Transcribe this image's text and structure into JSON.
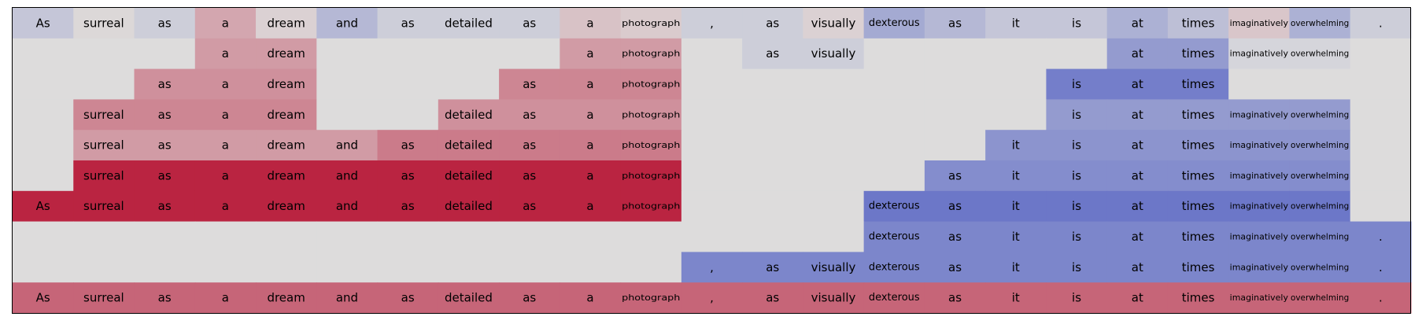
{
  "chart_data": {
    "type": "heatmap",
    "title": "",
    "xlabel": "",
    "ylabel": "",
    "grid": false,
    "legend": "none",
    "tokens": [
      "As",
      "surreal",
      "as",
      "a",
      "dream",
      "and",
      "as",
      "detailed",
      "as",
      "a",
      "photograph",
      ",",
      "as",
      "visually",
      "dexterous",
      "as",
      "it",
      "is",
      "at",
      "times",
      "imaginatively",
      "overwhelming",
      "."
    ],
    "colorscale": {
      "min": -1,
      "max": 1,
      "negative": "#3b4cc0",
      "neutral": "#dddcdc",
      "positive": "#b40426"
    },
    "rows": [
      {
        "values": [
          -0.15,
          0.02,
          -0.1,
          0.25,
          0.05,
          -0.25,
          -0.1,
          -0.1,
          -0.1,
          0.12,
          0.08,
          -0.1,
          -0.1,
          0.05,
          -0.35,
          -0.25,
          -0.15,
          -0.15,
          -0.3,
          -0.2,
          0.1,
          -0.3,
          -0.1
        ]
      },
      {
        "values": [
          null,
          null,
          null,
          0.3,
          0.3,
          null,
          null,
          null,
          null,
          0.3,
          0.3,
          null,
          -0.1,
          -0.1,
          null,
          null,
          null,
          null,
          -0.45,
          -0.45,
          -0.05,
          -0.05,
          null
        ]
      },
      {
        "values": [
          null,
          null,
          0.35,
          0.35,
          0.35,
          null,
          null,
          null,
          0.4,
          0.4,
          0.4,
          null,
          null,
          null,
          null,
          null,
          null,
          -0.65,
          -0.65,
          -0.65,
          null,
          null,
          null
        ]
      },
      {
        "values": [
          null,
          0.4,
          0.4,
          0.4,
          0.4,
          null,
          null,
          0.35,
          0.35,
          0.35,
          0.35,
          null,
          null,
          null,
          null,
          null,
          null,
          -0.45,
          -0.45,
          -0.45,
          -0.45,
          -0.45,
          null
        ]
      },
      {
        "values": [
          null,
          0.3,
          0.3,
          0.3,
          0.3,
          0.3,
          0.45,
          0.45,
          0.45,
          0.45,
          0.45,
          null,
          null,
          null,
          null,
          null,
          -0.5,
          -0.5,
          -0.5,
          -0.5,
          -0.5,
          -0.5,
          null
        ]
      },
      {
        "values": [
          null,
          0.85,
          0.85,
          0.85,
          0.85,
          0.85,
          0.85,
          0.85,
          0.85,
          0.85,
          0.85,
          null,
          null,
          null,
          null,
          -0.55,
          -0.55,
          -0.55,
          -0.55,
          -0.55,
          -0.55,
          -0.55,
          null
        ]
      },
      {
        "values": [
          0.85,
          0.85,
          0.85,
          0.85,
          0.85,
          0.85,
          0.85,
          0.85,
          0.85,
          0.85,
          0.85,
          null,
          null,
          null,
          -0.7,
          -0.7,
          -0.7,
          -0.7,
          -0.7,
          -0.7,
          -0.7,
          -0.7,
          null
        ]
      },
      {
        "values": [
          null,
          null,
          null,
          null,
          null,
          null,
          null,
          null,
          null,
          null,
          null,
          null,
          null,
          null,
          -0.6,
          -0.6,
          -0.6,
          -0.6,
          -0.6,
          -0.6,
          -0.6,
          -0.6,
          -0.6
        ]
      },
      {
        "values": [
          null,
          null,
          null,
          null,
          null,
          null,
          null,
          null,
          null,
          null,
          null,
          -0.6,
          -0.6,
          -0.6,
          -0.6,
          -0.6,
          -0.6,
          -0.6,
          -0.6,
          -0.6,
          -0.6,
          -0.6,
          -0.6
        ]
      },
      {
        "values": [
          0.55,
          0.55,
          0.55,
          0.55,
          0.55,
          0.55,
          0.55,
          0.55,
          0.55,
          0.55,
          0.55,
          0.55,
          0.55,
          0.55,
          0.55,
          0.55,
          0.55,
          0.55,
          0.55,
          0.55,
          0.55,
          0.55,
          0.55
        ]
      }
    ]
  }
}
